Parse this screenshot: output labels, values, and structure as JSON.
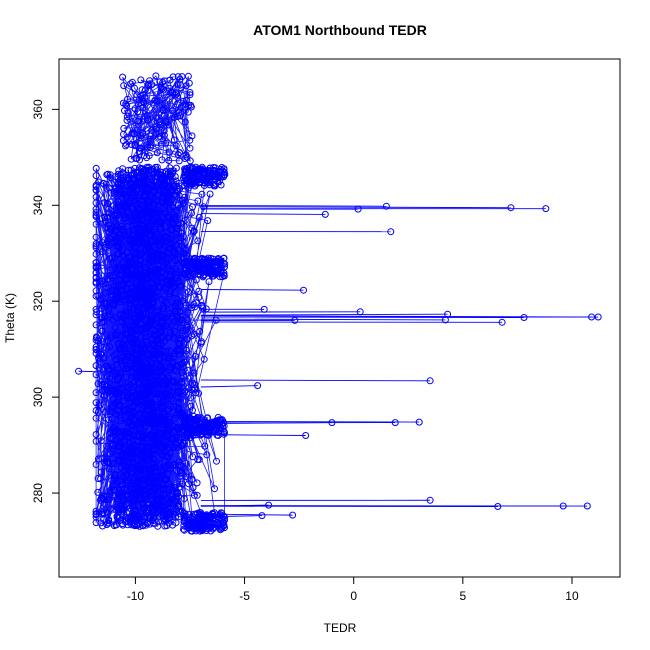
{
  "chart_data": {
    "type": "scatter",
    "title": "ATOM1 Northbound TEDR",
    "xlabel": "TEDR",
    "ylabel": "Theta (K)",
    "xlim": [
      -13.5,
      12.2
    ],
    "ylim": [
      262.5,
      370.5
    ],
    "xticks": [
      -10,
      -5,
      0,
      5,
      10
    ],
    "yticks": [
      280,
      300,
      320,
      340,
      360
    ],
    "grid": false,
    "marker": "open-circle",
    "connected": true,
    "color": "#0000ff",
    "bulk_cloud": {
      "x_range": [
        -11.8,
        -6.0
      ],
      "y_range": [
        273,
        348
      ],
      "upper_sparse_y_range": [
        349,
        367
      ]
    },
    "outliers": [
      {
        "x": 8.8,
        "y": 339.3
      },
      {
        "x": 7.2,
        "y": 339.5
      },
      {
        "x": 1.5,
        "y": 339.8
      },
      {
        "x": 0.2,
        "y": 339.2
      },
      {
        "x": -1.3,
        "y": 338.1
      },
      {
        "x": 1.7,
        "y": 334.5
      },
      {
        "x": -2.3,
        "y": 322.3
      },
      {
        "x": -4.1,
        "y": 318.3
      },
      {
        "x": 0.3,
        "y": 317.8
      },
      {
        "x": 4.3,
        "y": 317.3
      },
      {
        "x": 11.2,
        "y": 316.7
      },
      {
        "x": 10.9,
        "y": 316.7
      },
      {
        "x": 7.8,
        "y": 316.6
      },
      {
        "x": 4.2,
        "y": 316.1
      },
      {
        "x": -2.7,
        "y": 316.0
      },
      {
        "x": 6.8,
        "y": 315.6
      },
      {
        "x": 3.5,
        "y": 303.4
      },
      {
        "x": -4.4,
        "y": 302.4
      },
      {
        "x": 3.0,
        "y": 294.8
      },
      {
        "x": 1.9,
        "y": 294.7
      },
      {
        "x": -1.0,
        "y": 294.7
      },
      {
        "x": -2.2,
        "y": 292.0
      },
      {
        "x": 3.5,
        "y": 278.5
      },
      {
        "x": -3.9,
        "y": 277.5
      },
      {
        "x": 6.6,
        "y": 277.2
      },
      {
        "x": 9.6,
        "y": 277.3
      },
      {
        "x": 10.7,
        "y": 277.3
      },
      {
        "x": -2.8,
        "y": 275.4
      },
      {
        "x": -4.2,
        "y": 275.3
      },
      {
        "x": -12.6,
        "y": 305.4
      }
    ]
  }
}
